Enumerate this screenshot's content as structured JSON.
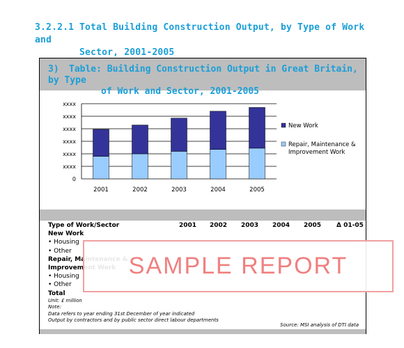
{
  "heading": {
    "number": "3.2.2.1",
    "line1": "Total Building Construction Output, by Type of Work and",
    "line2": "Sector, 2001-2005"
  },
  "table_title": {
    "number": "3)",
    "line1": "Table: Building Construction Output in Great Britain, by Type",
    "line2": "of Work and Sector, 2001-2005"
  },
  "chart_data": {
    "type": "bar",
    "stacked": true,
    "categories": [
      "2001",
      "2002",
      "2003",
      "2004",
      "2005"
    ],
    "y_tick_labels": [
      "0",
      "xxxx",
      "xxxx",
      "xxxx",
      "xxxx",
      "xxxx",
      "xxxx"
    ],
    "ylim": [
      0,
      6
    ],
    "series": [
      {
        "name": "Repair, Maintenance & Improvement Work",
        "color": "#99ccff",
        "values": [
          1.8,
          2.0,
          2.2,
          2.35,
          2.45
        ]
      },
      {
        "name": "New Work",
        "color": "#333399",
        "values": [
          2.15,
          2.3,
          2.65,
          3.05,
          3.25
        ]
      }
    ],
    "legend_position": "right",
    "grid": true
  },
  "table": {
    "header_label": "Type of Work/Sector",
    "years": [
      "2001",
      "2002",
      "2003",
      "2004",
      "2005"
    ],
    "change_label": "Δ 01-05",
    "rows": [
      {
        "label": "New Work",
        "bold": true
      },
      {
        "label": "• Housing",
        "bold": false
      },
      {
        "label": "• Other",
        "bold": false
      },
      {
        "label": "Repair, Maintenance &",
        "bold": true
      },
      {
        "label": "Improvement Work",
        "bold": true
      },
      {
        "label": "• Housing",
        "bold": false
      },
      {
        "label": "• Other",
        "bold": false
      },
      {
        "label": "Total",
        "bold": true
      }
    ],
    "notes": [
      "Unit: £ million",
      "Note:",
      "Data refers to year ending 31st December of year indicated",
      "Output by contractors and by public sector direct labour departments"
    ],
    "source": "Source: MSI analysis of DTI data"
  },
  "watermark": "SAMPLE REPORT"
}
